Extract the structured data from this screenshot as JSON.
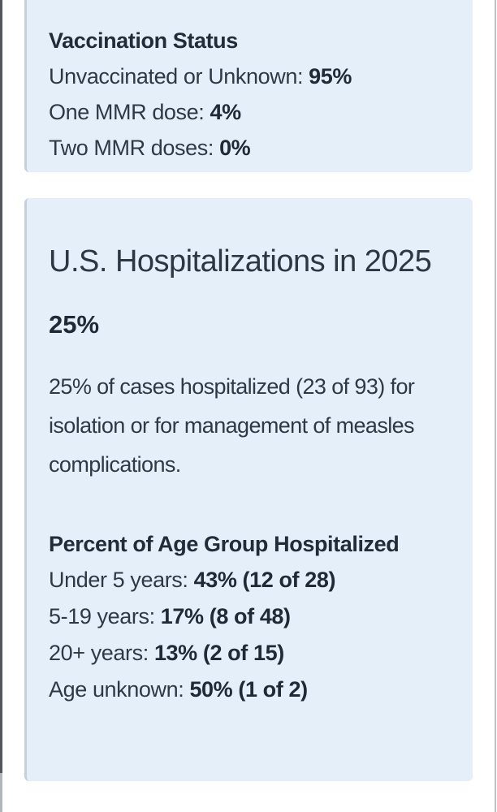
{
  "colors": {
    "page_background": "#ffffff",
    "card_background": "#e4effa",
    "card_left_border": "#c7d0d9",
    "text_regular": "#2f3845",
    "text_bold": "#202a36",
    "left_edge_thumb": "#54575c",
    "left_edge_track": "#b0b6bc",
    "right_edge_line": "#bcc2c8"
  },
  "vaccination_card": {
    "title": "Vaccination Status",
    "stats": [
      {
        "label": "Unvaccinated or Unknown: ",
        "value": "95%"
      },
      {
        "label": "One MMR dose: ",
        "value": "4%"
      },
      {
        "label": "Two MMR doses: ",
        "value": "0%"
      }
    ]
  },
  "hospitalization_card": {
    "title": "U.S. Hospitalizations in 2025",
    "headline_value": "25%",
    "description": "25% of cases hospitalized (23 of 93) for isolation or for management of measles complications.",
    "subheading": "Percent of Age Group Hospitalized",
    "stats": [
      {
        "label": "Under 5 years: ",
        "value": "43% (12 of 28)"
      },
      {
        "label": "5-19 years: ",
        "value": "17% (8 of 48)"
      },
      {
        "label": "20+ years: ",
        "value": "13% (2 of 15)"
      },
      {
        "label": "Age unknown: ",
        "value": "50% (1 of 2)"
      }
    ]
  }
}
